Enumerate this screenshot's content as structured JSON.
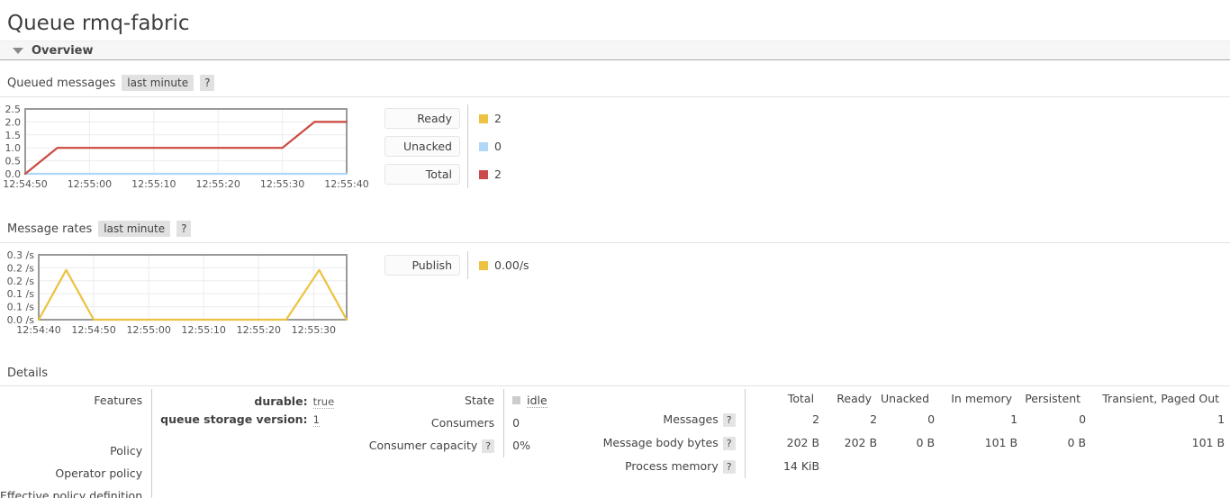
{
  "page_title": "Queue rmq-fabric",
  "overview_header": {
    "label": "Overview"
  },
  "queued_messages_section": {
    "title": "Queued messages",
    "period": "last minute",
    "help": "?"
  },
  "message_rates_section": {
    "title": "Message rates",
    "period": "last minute",
    "help": "?"
  },
  "details_section": {
    "title": "Details"
  },
  "chart_data": [
    {
      "type": "line",
      "title": "Queued messages",
      "x_range": [
        0,
        50
      ],
      "ylim": [
        0,
        2.5
      ],
      "x_ticks": [
        {
          "x": 0,
          "label": "12:54:50"
        },
        {
          "x": 10,
          "label": "12:55:00"
        },
        {
          "x": 20,
          "label": "12:55:10"
        },
        {
          "x": 30,
          "label": "12:55:20"
        },
        {
          "x": 40,
          "label": "12:55:30"
        },
        {
          "x": 50,
          "label": "12:55:40"
        }
      ],
      "y_ticks": [
        {
          "y": 0,
          "label": "0.0"
        },
        {
          "y": 0.5,
          "label": "0.5"
        },
        {
          "y": 1,
          "label": "1.0"
        },
        {
          "y": 1.5,
          "label": "1.5"
        },
        {
          "y": 2,
          "label": "2.0"
        },
        {
          "y": 2.5,
          "label": "2.5"
        }
      ],
      "grid": true,
      "legend_position": "right",
      "series": [
        {
          "name": "Ready",
          "color": "#edc240",
          "points": [
            [
              0,
              0
            ],
            [
              5,
              1
            ],
            [
              40,
              1
            ],
            [
              45,
              2
            ],
            [
              50,
              2
            ]
          ]
        },
        {
          "name": "Unacked",
          "color": "#afd8f8",
          "points": [
            [
              0,
              0
            ],
            [
              50,
              0
            ]
          ]
        },
        {
          "name": "Total",
          "color": "#cb4b4b",
          "points": [
            [
              0,
              0
            ],
            [
              5,
              1
            ],
            [
              40,
              1
            ],
            [
              45,
              2
            ],
            [
              50,
              2
            ]
          ]
        }
      ],
      "legend": [
        {
          "label": "Ready",
          "value": "2",
          "color": "#edc240"
        },
        {
          "label": "Unacked",
          "value": "0",
          "color": "#afd8f8"
        },
        {
          "label": "Total",
          "value": "2",
          "color": "#cb4b4b"
        }
      ]
    },
    {
      "type": "line",
      "title": "Message rates",
      "x_range": [
        0,
        56
      ],
      "ylim": [
        0,
        0.3
      ],
      "x_ticks": [
        {
          "x": 0,
          "label": "12:54:40"
        },
        {
          "x": 10,
          "label": "12:54:50"
        },
        {
          "x": 20,
          "label": "12:55:00"
        },
        {
          "x": 30,
          "label": "12:55:10"
        },
        {
          "x": 40,
          "label": "12:55:20"
        },
        {
          "x": 50,
          "label": "12:55:30"
        }
      ],
      "y_ticks": [
        {
          "y": 0,
          "label": "0.0 /s"
        },
        {
          "y": 0.06,
          "label": "0.1 /s"
        },
        {
          "y": 0.12,
          "label": "0.1 /s"
        },
        {
          "y": 0.18,
          "label": "0.2 /s"
        },
        {
          "y": 0.24,
          "label": "0.2 /s"
        },
        {
          "y": 0.3,
          "label": "0.3 /s"
        }
      ],
      "grid": true,
      "legend_position": "right",
      "series": [
        {
          "name": "Publish",
          "color": "#edc240",
          "points": [
            [
              0,
              0
            ],
            [
              5,
              0.23
            ],
            [
              10,
              0
            ],
            [
              45,
              0
            ],
            [
              51,
              0.23
            ],
            [
              56,
              0
            ]
          ]
        }
      ],
      "legend": [
        {
          "label": "Publish",
          "value": "0.00/s",
          "color": "#edc240"
        }
      ]
    }
  ],
  "details": {
    "features": {
      "label": "Features",
      "items": [
        {
          "key": "durable:",
          "value": "true"
        },
        {
          "key": "queue storage version:",
          "value": "1"
        }
      ]
    },
    "policy": {
      "label": "Policy",
      "value": ""
    },
    "operator_policy": {
      "label": "Operator policy",
      "value": ""
    },
    "effective_policy_definition": {
      "label": "Effective policy definition",
      "value": ""
    },
    "state": {
      "label": "State",
      "value": "idle",
      "indicator_color": "#cccccc"
    },
    "consumers": {
      "label": "Consumers",
      "value": "0"
    },
    "consumer_capacity": {
      "label": "Consumer capacity",
      "help": "?",
      "value": "0%"
    },
    "stats": {
      "columns": [
        "Total",
        "Ready",
        "Unacked",
        "In memory",
        "Persistent",
        "Transient, Paged Out"
      ],
      "rows": [
        {
          "label": "Messages",
          "help": "?",
          "values": [
            "2",
            "2",
            "0",
            "1",
            "0",
            "1"
          ]
        },
        {
          "label": "Message body bytes",
          "help": "?",
          "values": [
            "202 B",
            "202 B",
            "0 B",
            "101 B",
            "0 B",
            "101 B"
          ]
        },
        {
          "label": "Process memory",
          "help": "?",
          "values": [
            "14 KiB",
            "",
            "",
            "",
            "",
            ""
          ]
        }
      ]
    }
  },
  "colors": {
    "ready": "#edc240",
    "unacked": "#afd8f8",
    "total": "#cb4b4b",
    "publish": "#edc240",
    "idle_indicator": "#cccccc"
  }
}
